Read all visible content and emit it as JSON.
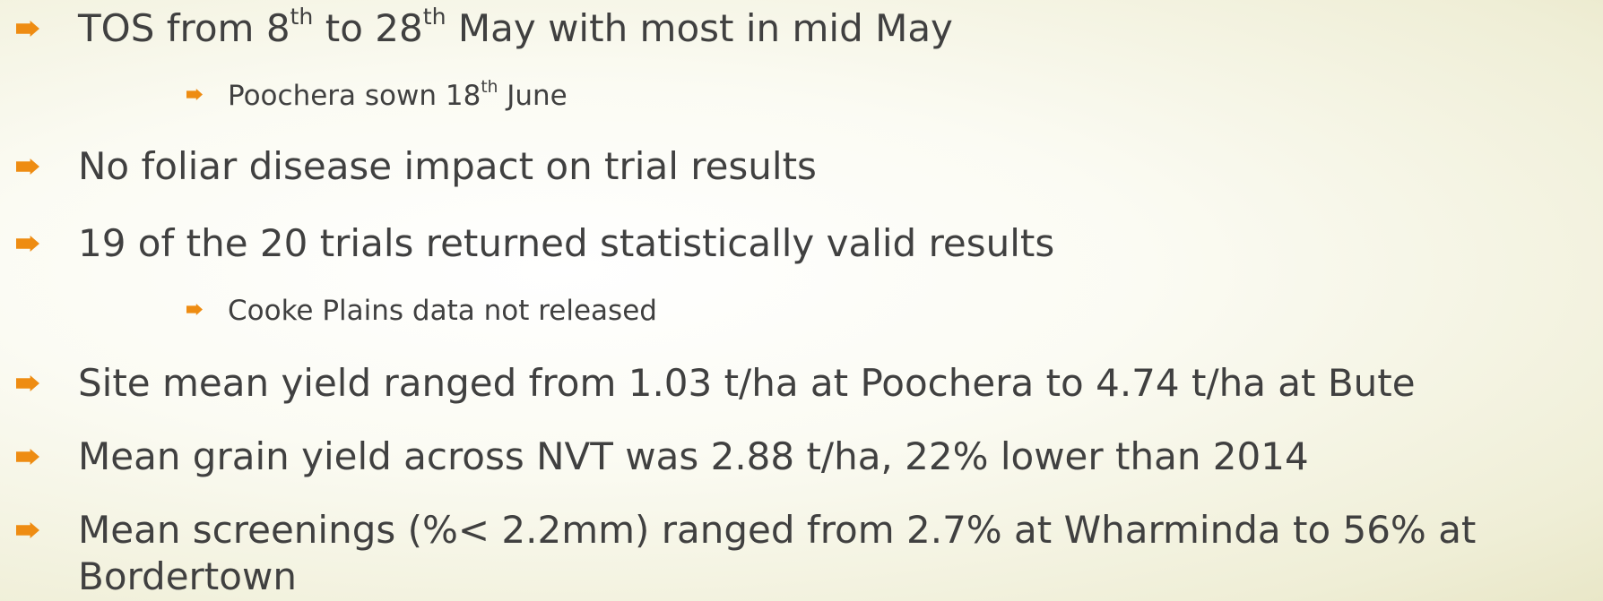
{
  "bullets": [
    {
      "level": 1,
      "segments": [
        {
          "text": "TOS from 8"
        },
        {
          "text": "th",
          "sup": true
        },
        {
          "text": " to 28"
        },
        {
          "text": "th",
          "sup": true
        },
        {
          "text": " May with most in mid May"
        }
      ]
    },
    {
      "level": 2,
      "segments": [
        {
          "text": "Poochera sown 18"
        },
        {
          "text": "th",
          "sup": true
        },
        {
          "text": " June"
        }
      ]
    },
    {
      "level": 1,
      "segments": [
        {
          "text": "No foliar disease impact on trial results"
        }
      ]
    },
    {
      "level": 1,
      "segments": [
        {
          "text": "19 of the 20 trials returned statistically valid results"
        }
      ]
    },
    {
      "level": 2,
      "segments": [
        {
          "text": "Cooke Plains data not released"
        }
      ]
    },
    {
      "level": 1,
      "segments": [
        {
          "text": "Site mean yield ranged from 1.03 t/ha at Poochera to 4.74 t/ha at Bute"
        }
      ]
    },
    {
      "level": 1,
      "segments": [
        {
          "text": "Mean grain yield across NVT was 2.88 t/ha, 22% lower than 2014"
        }
      ]
    },
    {
      "level": 1,
      "segments": [
        {
          "text": "Mean screenings (%< 2.2mm) ranged from 2.7% at Wharminda to 56% at Bordertown"
        }
      ]
    }
  ]
}
